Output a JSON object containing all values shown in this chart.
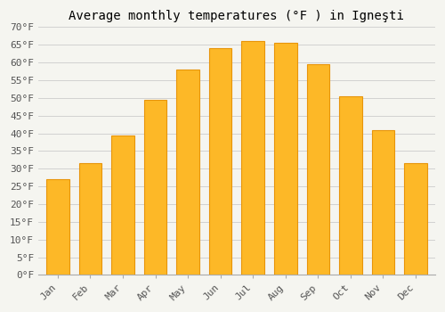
{
  "title": "Average monthly temperatures (°F ) in Igneşti",
  "months": [
    "Jan",
    "Feb",
    "Mar",
    "Apr",
    "May",
    "Jun",
    "Jul",
    "Aug",
    "Sep",
    "Oct",
    "Nov",
    "Dec"
  ],
  "values": [
    27,
    31.5,
    39.5,
    49.5,
    58,
    64,
    66,
    65.5,
    59.5,
    50.5,
    41,
    31.5
  ],
  "bar_color": "#FDB827",
  "bar_edge_color": "#E8950A",
  "background_color": "#f5f5f0",
  "plot_bg_color": "#f5f5f0",
  "grid_color": "#cccccc",
  "ylim": [
    0,
    70
  ],
  "yticks": [
    0,
    5,
    10,
    15,
    20,
    25,
    30,
    35,
    40,
    45,
    50,
    55,
    60,
    65,
    70
  ],
  "title_fontsize": 10,
  "tick_fontsize": 8,
  "bar_width": 0.7
}
